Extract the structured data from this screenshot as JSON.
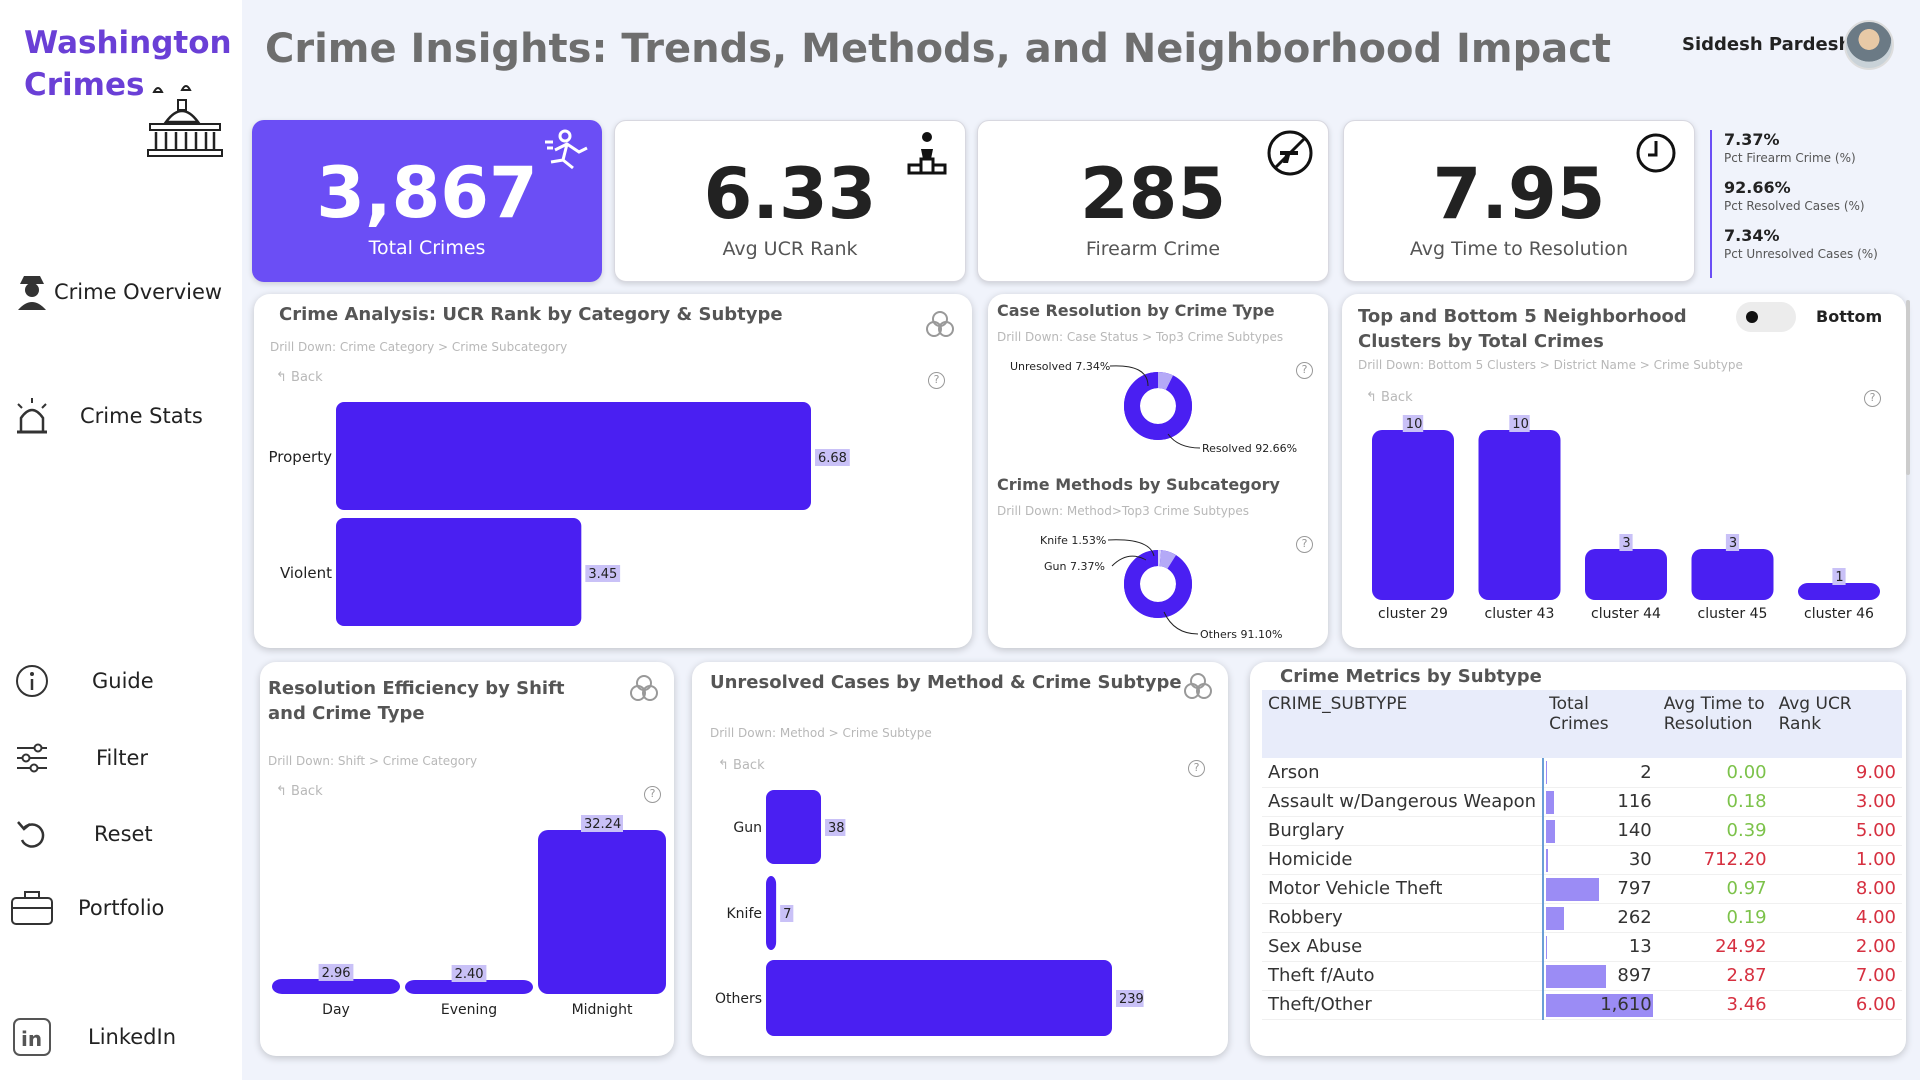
{
  "sidebar": {
    "brand_line1": "Washington",
    "brand_line2": "Crimes",
    "items": [
      {
        "label": "Crime Overview",
        "icon": "detective-icon"
      },
      {
        "label": "Crime Stats",
        "icon": "alarm-siren-icon"
      },
      {
        "label": "Guide",
        "icon": "info-icon"
      },
      {
        "label": "Filter",
        "icon": "sliders-icon"
      },
      {
        "label": "Reset",
        "icon": "undo-icon"
      },
      {
        "label": "Portfolio",
        "icon": "briefcase-icon"
      },
      {
        "label": "LinkedIn",
        "icon": "linkedin-icon"
      }
    ]
  },
  "header": {
    "title": "Crime Insights: Trends, Methods, and Neighborhood Impact",
    "user": "Siddesh Pardeshi"
  },
  "kpis": [
    {
      "value": "3,867",
      "caption": "Total Crimes",
      "icon": "running-thief-icon"
    },
    {
      "value": "6.33",
      "caption": "Avg UCR Rank",
      "icon": "podium-icon"
    },
    {
      "value": "285",
      "caption": "Firearm Crime",
      "icon": "no-gun-icon"
    },
    {
      "value": "7.95",
      "caption": "Avg Time to Resolution",
      "icon": "clock-icon"
    }
  ],
  "pct_panel": [
    {
      "value": "7.37%",
      "label": "Pct Firearm Crime (%)"
    },
    {
      "value": "92.66%",
      "label": "Pct Resolved Cases (%)"
    },
    {
      "value": "7.34%",
      "label": "Pct Unresolved Cases (%)"
    }
  ],
  "common": {
    "back": "Back",
    "help": "?"
  },
  "panel_ucr": {
    "title": "Crime Analysis: UCR Rank by Category & Subtype",
    "drill": "Drill Down: Crime Category > Crime Subcategory"
  },
  "panel_resolution": {
    "title": "Case Resolution by Crime Type",
    "drill": "Drill Down: Case Status > Top3 Crime Subtypes"
  },
  "panel_methods": {
    "title": "Crime Methods by Subcategory",
    "drill": "Drill Down: Method>Top3 Crime Subtypes"
  },
  "panel_clusters": {
    "title_line1": "Top and Bottom 5 Neighborhood",
    "title_line2": "Clusters by Total Crimes",
    "drill": "Drill Down: Bottom 5 Clusters > District Name > Crime Subtype",
    "toggle_label": "Bottom"
  },
  "panel_shift": {
    "title_line1": "Resolution Efficiency by Shift",
    "title_line2": "and Crime Type",
    "drill": "Drill Down: Shift > Crime Category"
  },
  "panel_unresolved": {
    "title": "Unresolved Cases by Method & Crime Subtype",
    "drill": "Drill Down: Method > Crime Subtype"
  },
  "panel_metrics": {
    "title": "Crime Metrics by Subtype",
    "headers": [
      "CRIME_SUBTYPE",
      "Total Crimes",
      "Avg Time to Resolution",
      "Avg UCR Rank"
    ],
    "rows": [
      {
        "subtype": "Arson",
        "total": "2",
        "avg_time": "0.00",
        "avg_ucr": "9.00",
        "total_n": 2,
        "time_color": "#7cc24a"
      },
      {
        "subtype": "Assault w/Dangerous Weapon",
        "total": "116",
        "avg_time": "0.18",
        "avg_ucr": "3.00",
        "total_n": 116,
        "time_color": "#7cc24a"
      },
      {
        "subtype": "Burglary",
        "total": "140",
        "avg_time": "0.39",
        "avg_ucr": "5.00",
        "total_n": 140,
        "time_color": "#7cc24a"
      },
      {
        "subtype": "Homicide",
        "total": "30",
        "avg_time": "712.20",
        "avg_ucr": "1.00",
        "total_n": 30,
        "time_color": "#d63040"
      },
      {
        "subtype": "Motor Vehicle Theft",
        "total": "797",
        "avg_time": "0.97",
        "avg_ucr": "8.00",
        "total_n": 797,
        "time_color": "#7cc24a"
      },
      {
        "subtype": "Robbery",
        "total": "262",
        "avg_time": "0.19",
        "avg_ucr": "4.00",
        "total_n": 262,
        "time_color": "#7cc24a"
      },
      {
        "subtype": "Sex Abuse",
        "total": "13",
        "avg_time": "24.92",
        "avg_ucr": "2.00",
        "total_n": 13,
        "time_color": "#d63040"
      },
      {
        "subtype": "Theft f/Auto",
        "total": "897",
        "avg_time": "2.87",
        "avg_ucr": "7.00",
        "total_n": 897,
        "time_color": "#d63040"
      },
      {
        "subtype": "Theft/Other",
        "total": "1,610",
        "avg_time": "3.46",
        "avg_ucr": "6.00",
        "total_n": 1610,
        "time_color": "#d63040"
      }
    ],
    "ucr_color": "#d63040",
    "bar_color": "#9b8cf5"
  },
  "colors": {
    "accent": "#4a1ff2",
    "kpi_primary": "#6b4ef5",
    "brand": "#6a3fd6",
    "label_bg": "#c9c1f7"
  },
  "chart_data": [
    {
      "type": "bar",
      "orientation": "horizontal",
      "categories": [
        "Property",
        "Violent"
      ],
      "values": [
        6.68,
        3.45
      ],
      "labels": [
        "6.68",
        "3.45"
      ]
    },
    {
      "type": "pie",
      "donut": true,
      "categories": [
        "Unresolved",
        "Resolved"
      ],
      "values": [
        7.34,
        92.66
      ],
      "labels": [
        "Unresolved 7.34%",
        "Resolved 92.66%"
      ]
    },
    {
      "type": "pie",
      "donut": true,
      "categories": [
        "Knife",
        "Gun",
        "Others"
      ],
      "values": [
        1.53,
        7.37,
        91.1
      ],
      "labels": [
        "Knife 1.53%",
        "Gun 7.37%",
        "Others 91.10%"
      ]
    },
    {
      "type": "bar",
      "categories": [
        "cluster 29",
        "cluster 43",
        "cluster 44",
        "cluster 45",
        "cluster 46"
      ],
      "values": [
        10,
        10,
        3,
        3,
        1
      ],
      "labels": [
        "10",
        "10",
        "3",
        "3",
        "1"
      ]
    },
    {
      "type": "bar",
      "categories": [
        "Day",
        "Evening",
        "Midnight"
      ],
      "values": [
        2.96,
        2.4,
        32.24
      ],
      "labels": [
        "2.96",
        "2.40",
        "32.24"
      ]
    },
    {
      "type": "bar",
      "orientation": "horizontal",
      "categories": [
        "Gun",
        "Knife",
        "Others"
      ],
      "values": [
        38,
        7,
        239
      ],
      "labels": [
        "38",
        "7",
        "239"
      ]
    }
  ]
}
